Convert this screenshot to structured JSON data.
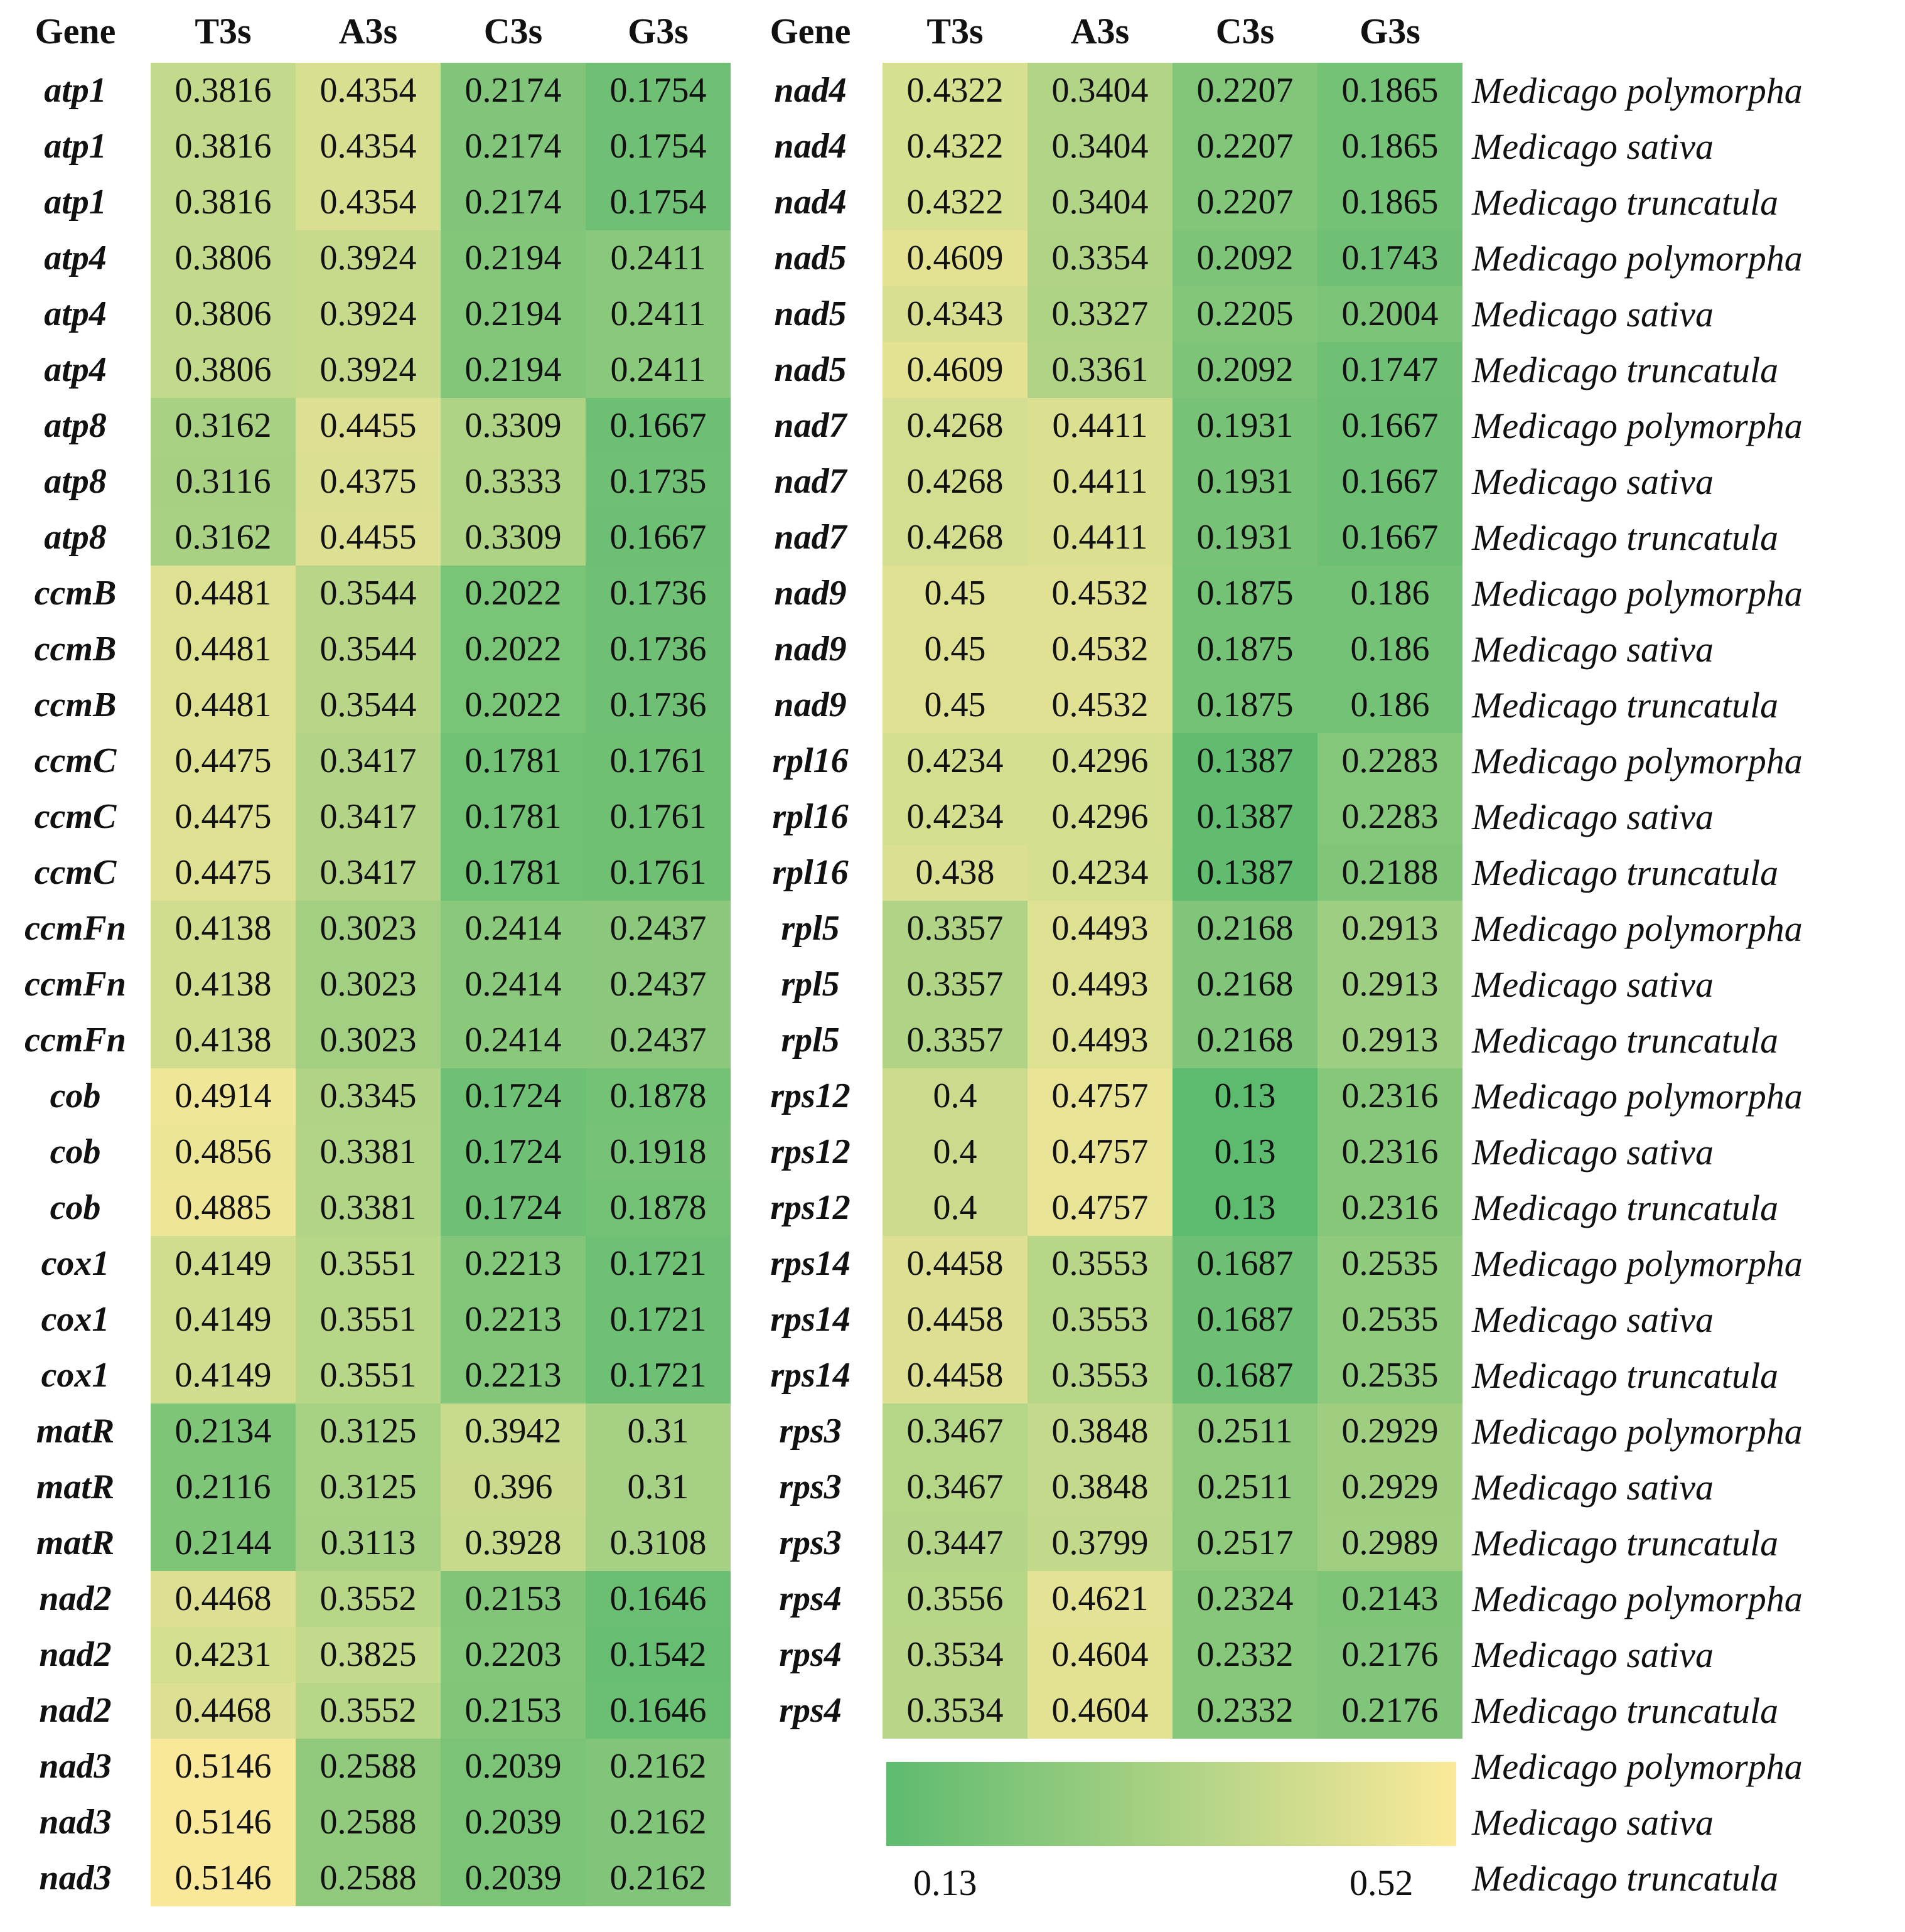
{
  "chart_data": {
    "type": "heatmap",
    "title": "",
    "columns": [
      "T3s",
      "A3s",
      "C3s",
      "G3s"
    ],
    "gene_header": "Gene",
    "color_scale": {
      "min": 0.13,
      "max": 0.52,
      "min_label": "0.13",
      "max_label": "0.52",
      "min_color": "#5dbb6f",
      "max_color": "#fbe99a"
    },
    "species": [
      "Medicago polymorpha",
      "Medicago sativa",
      "Medicago truncatula"
    ],
    "left_block": [
      {
        "gene": "atp1",
        "values": [
          "0.3816",
          "0.4354",
          "0.2174",
          "0.1754"
        ]
      },
      {
        "gene": "atp1",
        "values": [
          "0.3816",
          "0.4354",
          "0.2174",
          "0.1754"
        ]
      },
      {
        "gene": "atp1",
        "values": [
          "0.3816",
          "0.4354",
          "0.2174",
          "0.1754"
        ]
      },
      {
        "gene": "atp4",
        "values": [
          "0.3806",
          "0.3924",
          "0.2194",
          "0.2411"
        ]
      },
      {
        "gene": "atp4",
        "values": [
          "0.3806",
          "0.3924",
          "0.2194",
          "0.2411"
        ]
      },
      {
        "gene": "atp4",
        "values": [
          "0.3806",
          "0.3924",
          "0.2194",
          "0.2411"
        ]
      },
      {
        "gene": "atp8",
        "values": [
          "0.3162",
          "0.4455",
          "0.3309",
          "0.1667"
        ]
      },
      {
        "gene": "atp8",
        "values": [
          "0.3116",
          "0.4375",
          "0.3333",
          "0.1735"
        ]
      },
      {
        "gene": "atp8",
        "values": [
          "0.3162",
          "0.4455",
          "0.3309",
          "0.1667"
        ]
      },
      {
        "gene": "ccmB",
        "values": [
          "0.4481",
          "0.3544",
          "0.2022",
          "0.1736"
        ]
      },
      {
        "gene": "ccmB",
        "values": [
          "0.4481",
          "0.3544",
          "0.2022",
          "0.1736"
        ]
      },
      {
        "gene": "ccmB",
        "values": [
          "0.4481",
          "0.3544",
          "0.2022",
          "0.1736"
        ]
      },
      {
        "gene": "ccmC",
        "values": [
          "0.4475",
          "0.3417",
          "0.1781",
          "0.1761"
        ]
      },
      {
        "gene": "ccmC",
        "values": [
          "0.4475",
          "0.3417",
          "0.1781",
          "0.1761"
        ]
      },
      {
        "gene": "ccmC",
        "values": [
          "0.4475",
          "0.3417",
          "0.1781",
          "0.1761"
        ]
      },
      {
        "gene": "ccmFn",
        "values": [
          "0.4138",
          "0.3023",
          "0.2414",
          "0.2437"
        ]
      },
      {
        "gene": "ccmFn",
        "values": [
          "0.4138",
          "0.3023",
          "0.2414",
          "0.2437"
        ]
      },
      {
        "gene": "ccmFn",
        "values": [
          "0.4138",
          "0.3023",
          "0.2414",
          "0.2437"
        ]
      },
      {
        "gene": "cob",
        "values": [
          "0.4914",
          "0.3345",
          "0.1724",
          "0.1878"
        ]
      },
      {
        "gene": "cob",
        "values": [
          "0.4856",
          "0.3381",
          "0.1724",
          "0.1918"
        ]
      },
      {
        "gene": "cob",
        "values": [
          "0.4885",
          "0.3381",
          "0.1724",
          "0.1878"
        ]
      },
      {
        "gene": "cox1",
        "values": [
          "0.4149",
          "0.3551",
          "0.2213",
          "0.1721"
        ]
      },
      {
        "gene": "cox1",
        "values": [
          "0.4149",
          "0.3551",
          "0.2213",
          "0.1721"
        ]
      },
      {
        "gene": "cox1",
        "values": [
          "0.4149",
          "0.3551",
          "0.2213",
          "0.1721"
        ]
      },
      {
        "gene": "matR",
        "values": [
          "0.2134",
          "0.3125",
          "0.3942",
          "0.31"
        ]
      },
      {
        "gene": "matR",
        "values": [
          "0.2116",
          "0.3125",
          "0.396",
          "0.31"
        ]
      },
      {
        "gene": "matR",
        "values": [
          "0.2144",
          "0.3113",
          "0.3928",
          "0.3108"
        ]
      },
      {
        "gene": "nad2",
        "values": [
          "0.4468",
          "0.3552",
          "0.2153",
          "0.1646"
        ]
      },
      {
        "gene": "nad2",
        "values": [
          "0.4231",
          "0.3825",
          "0.2203",
          "0.1542"
        ]
      },
      {
        "gene": "nad2",
        "values": [
          "0.4468",
          "0.3552",
          "0.2153",
          "0.1646"
        ]
      },
      {
        "gene": "nad3",
        "values": [
          "0.5146",
          "0.2588",
          "0.2039",
          "0.2162"
        ]
      },
      {
        "gene": "nad3",
        "values": [
          "0.5146",
          "0.2588",
          "0.2039",
          "0.2162"
        ]
      },
      {
        "gene": "nad3",
        "values": [
          "0.5146",
          "0.2588",
          "0.2039",
          "0.2162"
        ]
      }
    ],
    "right_block": [
      {
        "gene": "nad4",
        "values": [
          "0.4322",
          "0.3404",
          "0.2207",
          "0.1865"
        ]
      },
      {
        "gene": "nad4",
        "values": [
          "0.4322",
          "0.3404",
          "0.2207",
          "0.1865"
        ]
      },
      {
        "gene": "nad4",
        "values": [
          "0.4322",
          "0.3404",
          "0.2207",
          "0.1865"
        ]
      },
      {
        "gene": "nad5",
        "values": [
          "0.4609",
          "0.3354",
          "0.2092",
          "0.1743"
        ]
      },
      {
        "gene": "nad5",
        "values": [
          "0.4343",
          "0.3327",
          "0.2205",
          "0.2004"
        ]
      },
      {
        "gene": "nad5",
        "values": [
          "0.4609",
          "0.3361",
          "0.2092",
          "0.1747"
        ]
      },
      {
        "gene": "nad7",
        "values": [
          "0.4268",
          "0.4411",
          "0.1931",
          "0.1667"
        ]
      },
      {
        "gene": "nad7",
        "values": [
          "0.4268",
          "0.4411",
          "0.1931",
          "0.1667"
        ]
      },
      {
        "gene": "nad7",
        "values": [
          "0.4268",
          "0.4411",
          "0.1931",
          "0.1667"
        ]
      },
      {
        "gene": "nad9",
        "values": [
          "0.45",
          "0.4532",
          "0.1875",
          "0.186"
        ]
      },
      {
        "gene": "nad9",
        "values": [
          "0.45",
          "0.4532",
          "0.1875",
          "0.186"
        ]
      },
      {
        "gene": "nad9",
        "values": [
          "0.45",
          "0.4532",
          "0.1875",
          "0.186"
        ]
      },
      {
        "gene": "rpl16",
        "values": [
          "0.4234",
          "0.4296",
          "0.1387",
          "0.2283"
        ]
      },
      {
        "gene": "rpl16",
        "values": [
          "0.4234",
          "0.4296",
          "0.1387",
          "0.2283"
        ]
      },
      {
        "gene": "rpl16",
        "values": [
          "0.438",
          "0.4234",
          "0.1387",
          "0.2188"
        ]
      },
      {
        "gene": "rpl5",
        "values": [
          "0.3357",
          "0.4493",
          "0.2168",
          "0.2913"
        ]
      },
      {
        "gene": "rpl5",
        "values": [
          "0.3357",
          "0.4493",
          "0.2168",
          "0.2913"
        ]
      },
      {
        "gene": "rpl5",
        "values": [
          "0.3357",
          "0.4493",
          "0.2168",
          "0.2913"
        ]
      },
      {
        "gene": "rps12",
        "values": [
          "0.4",
          "0.4757",
          "0.13",
          "0.2316"
        ]
      },
      {
        "gene": "rps12",
        "values": [
          "0.4",
          "0.4757",
          "0.13",
          "0.2316"
        ]
      },
      {
        "gene": "rps12",
        "values": [
          "0.4",
          "0.4757",
          "0.13",
          "0.2316"
        ]
      },
      {
        "gene": "rps14",
        "values": [
          "0.4458",
          "0.3553",
          "0.1687",
          "0.2535"
        ]
      },
      {
        "gene": "rps14",
        "values": [
          "0.4458",
          "0.3553",
          "0.1687",
          "0.2535"
        ]
      },
      {
        "gene": "rps14",
        "values": [
          "0.4458",
          "0.3553",
          "0.1687",
          "0.2535"
        ]
      },
      {
        "gene": "rps3",
        "values": [
          "0.3467",
          "0.3848",
          "0.2511",
          "0.2929"
        ]
      },
      {
        "gene": "rps3",
        "values": [
          "0.3467",
          "0.3848",
          "0.2511",
          "0.2929"
        ]
      },
      {
        "gene": "rps3",
        "values": [
          "0.3447",
          "0.3799",
          "0.2517",
          "0.2989"
        ]
      },
      {
        "gene": "rps4",
        "values": [
          "0.3556",
          "0.4621",
          "0.2324",
          "0.2143"
        ]
      },
      {
        "gene": "rps4",
        "values": [
          "0.3534",
          "0.4604",
          "0.2332",
          "0.2176"
        ]
      },
      {
        "gene": "rps4",
        "values": [
          "0.3534",
          "0.4604",
          "0.2332",
          "0.2176"
        ]
      }
    ]
  }
}
